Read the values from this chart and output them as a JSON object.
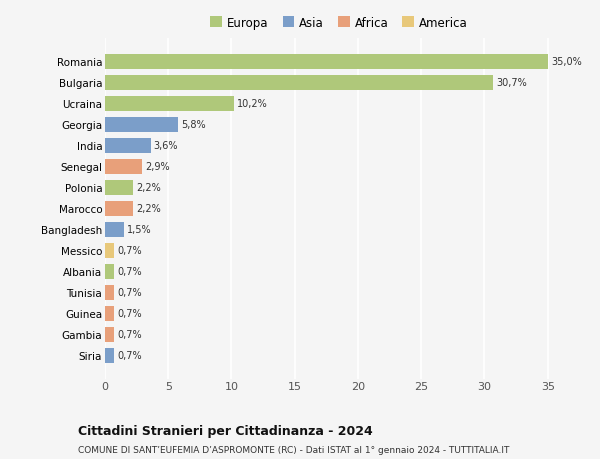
{
  "countries": [
    "Romania",
    "Bulgaria",
    "Ucraina",
    "Georgia",
    "India",
    "Senegal",
    "Polonia",
    "Marocco",
    "Bangladesh",
    "Messico",
    "Albania",
    "Tunisia",
    "Guinea",
    "Gambia",
    "Siria"
  ],
  "values": [
    35.0,
    30.7,
    10.2,
    5.8,
    3.6,
    2.9,
    2.2,
    2.2,
    1.5,
    0.7,
    0.7,
    0.7,
    0.7,
    0.7,
    0.7
  ],
  "labels": [
    "35,0%",
    "30,7%",
    "10,2%",
    "5,8%",
    "3,6%",
    "2,9%",
    "2,2%",
    "2,2%",
    "1,5%",
    "0,7%",
    "0,7%",
    "0,7%",
    "0,7%",
    "0,7%",
    "0,7%"
  ],
  "colors": [
    "#afc87a",
    "#afc87a",
    "#afc87a",
    "#7b9ec9",
    "#7b9ec9",
    "#e8a07a",
    "#afc87a",
    "#e8a07a",
    "#7b9ec9",
    "#e8c87a",
    "#afc87a",
    "#e8a07a",
    "#e8a07a",
    "#e8a07a",
    "#7b9ec9"
  ],
  "legend_labels": [
    "Europa",
    "Asia",
    "Africa",
    "America"
  ],
  "legend_colors": [
    "#afc87a",
    "#7b9ec9",
    "#e8a07a",
    "#e8c87a"
  ],
  "title": "Cittadini Stranieri per Cittadinanza - 2024",
  "subtitle": "COMUNE DI SANT’EUFEMIA D’ASPROMONTE (RC) - Dati ISTAT al 1° gennaio 2024 - TUTTITALIA.IT",
  "xlim": [
    0,
    37
  ],
  "xticks": [
    0,
    5,
    10,
    15,
    20,
    25,
    30,
    35
  ],
  "bg_color": "#f5f5f5",
  "grid_color": "#ffffff",
  "bar_height": 0.72
}
